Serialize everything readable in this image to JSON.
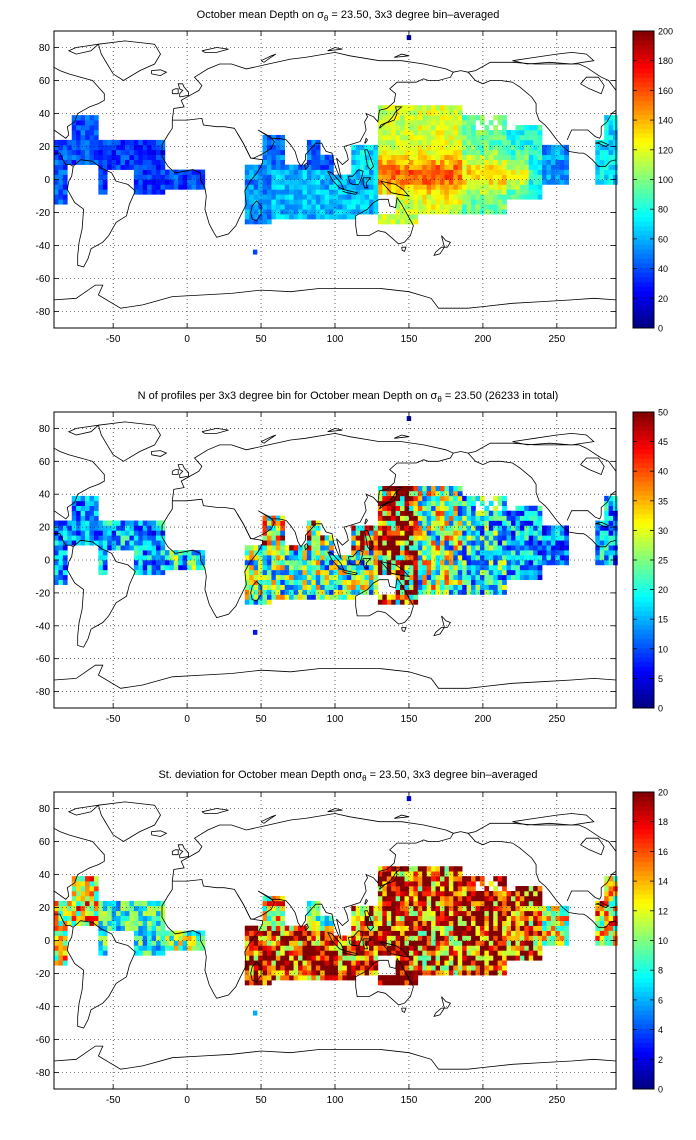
{
  "chart_data": [
    {
      "type": "heatmap",
      "title_prefix": "October mean Depth on σ",
      "title_sub": "θ",
      "title_suffix": " = 23.50, 3x3 degree bin–averaged",
      "xticks": [
        "-50",
        "0",
        "50",
        "100",
        "150",
        "200",
        "250"
      ],
      "yticks": [
        "80",
        "60",
        "40",
        "20",
        "0",
        "-20",
        "-40",
        "-60",
        "-80"
      ],
      "xlim": [
        -90,
        290
      ],
      "ylim": [
        -90,
        90
      ],
      "grid": "dotted",
      "colormap": "jet",
      "colorbar": {
        "min": 0,
        "max": 200,
        "ticks": [
          "200",
          "180",
          "160",
          "140",
          "120",
          "100",
          "80",
          "60",
          "40",
          "20",
          "0"
        ]
      },
      "field": "depth"
    },
    {
      "type": "heatmap",
      "title_prefix": "N of profiles per 3x3 degree bin for October mean Depth on σ",
      "title_sub": "θ",
      "title_suffix": " = 23.50 (26233 in total)",
      "xticks": [
        "-50",
        "0",
        "50",
        "100",
        "150",
        "200",
        "250"
      ],
      "yticks": [
        "80",
        "60",
        "40",
        "20",
        "0",
        "-20",
        "-40",
        "-60",
        "-80"
      ],
      "xlim": [
        -90,
        290
      ],
      "ylim": [
        -90,
        90
      ],
      "grid": "dotted",
      "colormap": "jet",
      "colorbar": {
        "min": 0,
        "max": 50,
        "ticks": [
          "50",
          "45",
          "40",
          "35",
          "30",
          "25",
          "20",
          "15",
          "10",
          "5",
          "0"
        ]
      },
      "field": "count"
    },
    {
      "type": "heatmap",
      "title_prefix": "St. deviation for October mean Depth onσ",
      "title_sub": "θ",
      "title_suffix": " = 23.50, 3x3 degree bin–averaged",
      "xticks": [
        "-50",
        "0",
        "50",
        "100",
        "150",
        "200",
        "250"
      ],
      "yticks": [
        "80",
        "60",
        "40",
        "20",
        "0",
        "-20",
        "-40",
        "-60",
        "-80"
      ],
      "xlim": [
        -90,
        290
      ],
      "ylim": [
        -90,
        90
      ],
      "grid": "dotted",
      "colormap": "jet",
      "colorbar": {
        "min": 0,
        "max": 20,
        "ticks": [
          "20",
          "18",
          "16",
          "14",
          "12",
          "10",
          "8",
          "6",
          "4",
          "2",
          "0"
        ]
      },
      "field": "std"
    }
  ],
  "data_regions": [
    {
      "lon": [
        -90,
        -60
      ],
      "lat": [
        -14,
        40
      ],
      "depth": 40,
      "count": 12,
      "std": 13
    },
    {
      "lon": [
        -60,
        -15
      ],
      "lat": [
        -8,
        24
      ],
      "depth": 35,
      "count": 14,
      "std": 8
    },
    {
      "lon": [
        -15,
        12
      ],
      "lat": [
        -6,
        6
      ],
      "depth": 38,
      "count": 18,
      "std": 10
    },
    {
      "lon": [
        40,
        58
      ],
      "lat": [
        -26,
        8
      ],
      "depth": 52,
      "count": 22,
      "std": 17
    },
    {
      "lon": [
        58,
        128
      ],
      "lat": [
        -24,
        6
      ],
      "depth": 62,
      "count": 22,
      "std": 17
    },
    {
      "lon": [
        52,
        80
      ],
      "lat": [
        6,
        26
      ],
      "depth": 48,
      "count": 30,
      "std": 13
    },
    {
      "lon": [
        82,
        98
      ],
      "lat": [
        6,
        24
      ],
      "depth": 44,
      "count": 30,
      "std": 10
    },
    {
      "lon": [
        110,
        128
      ],
      "lat": [
        4,
        22
      ],
      "depth": 70,
      "count": 36,
      "std": 16
    },
    {
      "lon": [
        128,
        155
      ],
      "lat": [
        -28,
        44
      ],
      "depth": 115,
      "count": 42,
      "std": 17
    },
    {
      "lon": [
        155,
        185
      ],
      "lat": [
        -22,
        44
      ],
      "depth": 118,
      "count": 24,
      "std": 16
    },
    {
      "lon": [
        185,
        215
      ],
      "lat": [
        -22,
        38
      ],
      "depth": 95,
      "count": 18,
      "std": 18
    },
    {
      "lon": [
        215,
        240
      ],
      "lat": [
        -12,
        32
      ],
      "depth": 80,
      "count": 14,
      "std": 16
    },
    {
      "lon": [
        240,
        258
      ],
      "lat": [
        -4,
        22
      ],
      "depth": 55,
      "count": 12,
      "std": 12
    },
    {
      "lon": [
        275,
        290
      ],
      "lat": [
        -4,
        40
      ],
      "depth": 70,
      "count": 14,
      "std": 13
    },
    {
      "lon": [
        46,
        48
      ],
      "lat": [
        -46,
        -42
      ],
      "depth": 30,
      "count": 5,
      "std": 5
    },
    {
      "lon": [
        148,
        152
      ],
      "lat": [
        84,
        88
      ],
      "depth": 20,
      "count": 3,
      "std": 3
    }
  ]
}
